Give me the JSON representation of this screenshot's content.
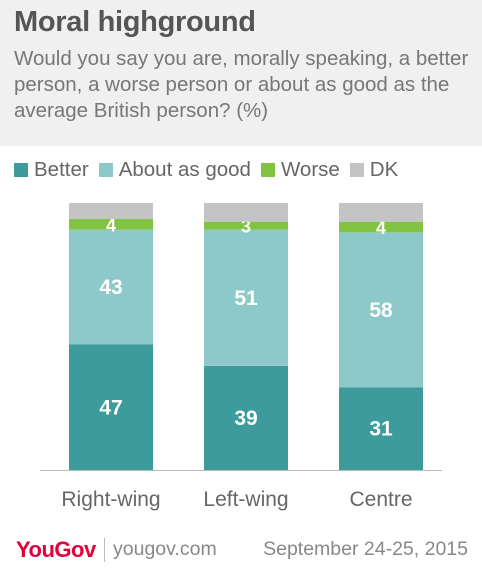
{
  "title": "Moral highground",
  "subtitle": "Would you say you are, morally speaking, a better person, a worse person or about as good as the average British person? (%)",
  "legend": [
    {
      "label": "Better",
      "color": "#3d9b9b"
    },
    {
      "label": "About as good",
      "color": "#8ec9c9"
    },
    {
      "label": "Worse",
      "color": "#82c341"
    },
    {
      "label": "DK",
      "color": "#c4c4c4"
    }
  ],
  "chart_data": {
    "type": "bar",
    "stacked": true,
    "categories": [
      "Right-wing",
      "Left-wing",
      "Centre"
    ],
    "series": [
      {
        "name": "Better",
        "values": [
          47,
          39,
          31
        ],
        "color": "#3d9b9b"
      },
      {
        "name": "About as good",
        "values": [
          43,
          51,
          58
        ],
        "color": "#8ec9c9"
      },
      {
        "name": "Worse",
        "values": [
          4,
          3,
          4
        ],
        "color": "#82c341"
      },
      {
        "name": "DK",
        "values": [
          6,
          7,
          7
        ],
        "color": "#c4c4c4"
      }
    ],
    "labeled_series": [
      "Better",
      "About as good",
      "Worse"
    ],
    "ylim": [
      0,
      100
    ],
    "grid": false,
    "legend_position": "top"
  },
  "footer": {
    "logo": "YouGov",
    "url": "yougov.com",
    "date": "September 24-25, 2015"
  }
}
